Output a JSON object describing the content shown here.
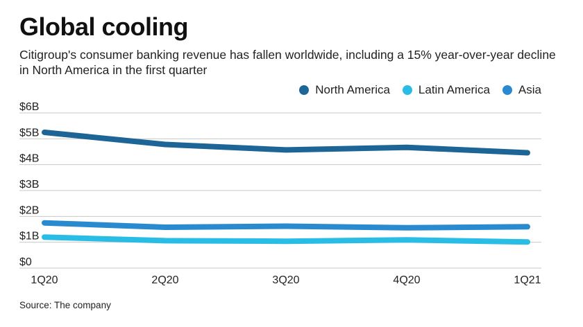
{
  "chart_data": {
    "type": "line",
    "title": "Global cooling",
    "subtitle": "Citigroup's consumer banking revenue has fallen worldwide, including a 15% year-over-year decline in North America in the first quarter",
    "categories": [
      "1Q20",
      "2Q20",
      "3Q20",
      "4Q20",
      "1Q21"
    ],
    "y_ticks": [
      {
        "value": 0,
        "label": "$0"
      },
      {
        "value": 1,
        "label": "$1B"
      },
      {
        "value": 2,
        "label": "$2B"
      },
      {
        "value": 3,
        "label": "$3B"
      },
      {
        "value": 4,
        "label": "$4B"
      },
      {
        "value": 5,
        "label": "$5B"
      },
      {
        "value": 6,
        "label": "$6B"
      }
    ],
    "ylim": [
      0,
      6
    ],
    "ylabel": "",
    "xlabel": "",
    "legend_position": "top-right",
    "grid": true,
    "series": [
      {
        "name": "North America",
        "color": "#1d6596",
        "values": [
          5.25,
          4.78,
          4.57,
          4.67,
          4.46
        ]
      },
      {
        "name": "Latin America",
        "color": "#29bde6",
        "values": [
          1.2,
          1.06,
          1.04,
          1.09,
          1.01
        ]
      },
      {
        "name": "Asia",
        "color": "#2a8ad0",
        "values": [
          1.75,
          1.58,
          1.62,
          1.56,
          1.6
        ]
      }
    ],
    "source": "Source: The company"
  }
}
